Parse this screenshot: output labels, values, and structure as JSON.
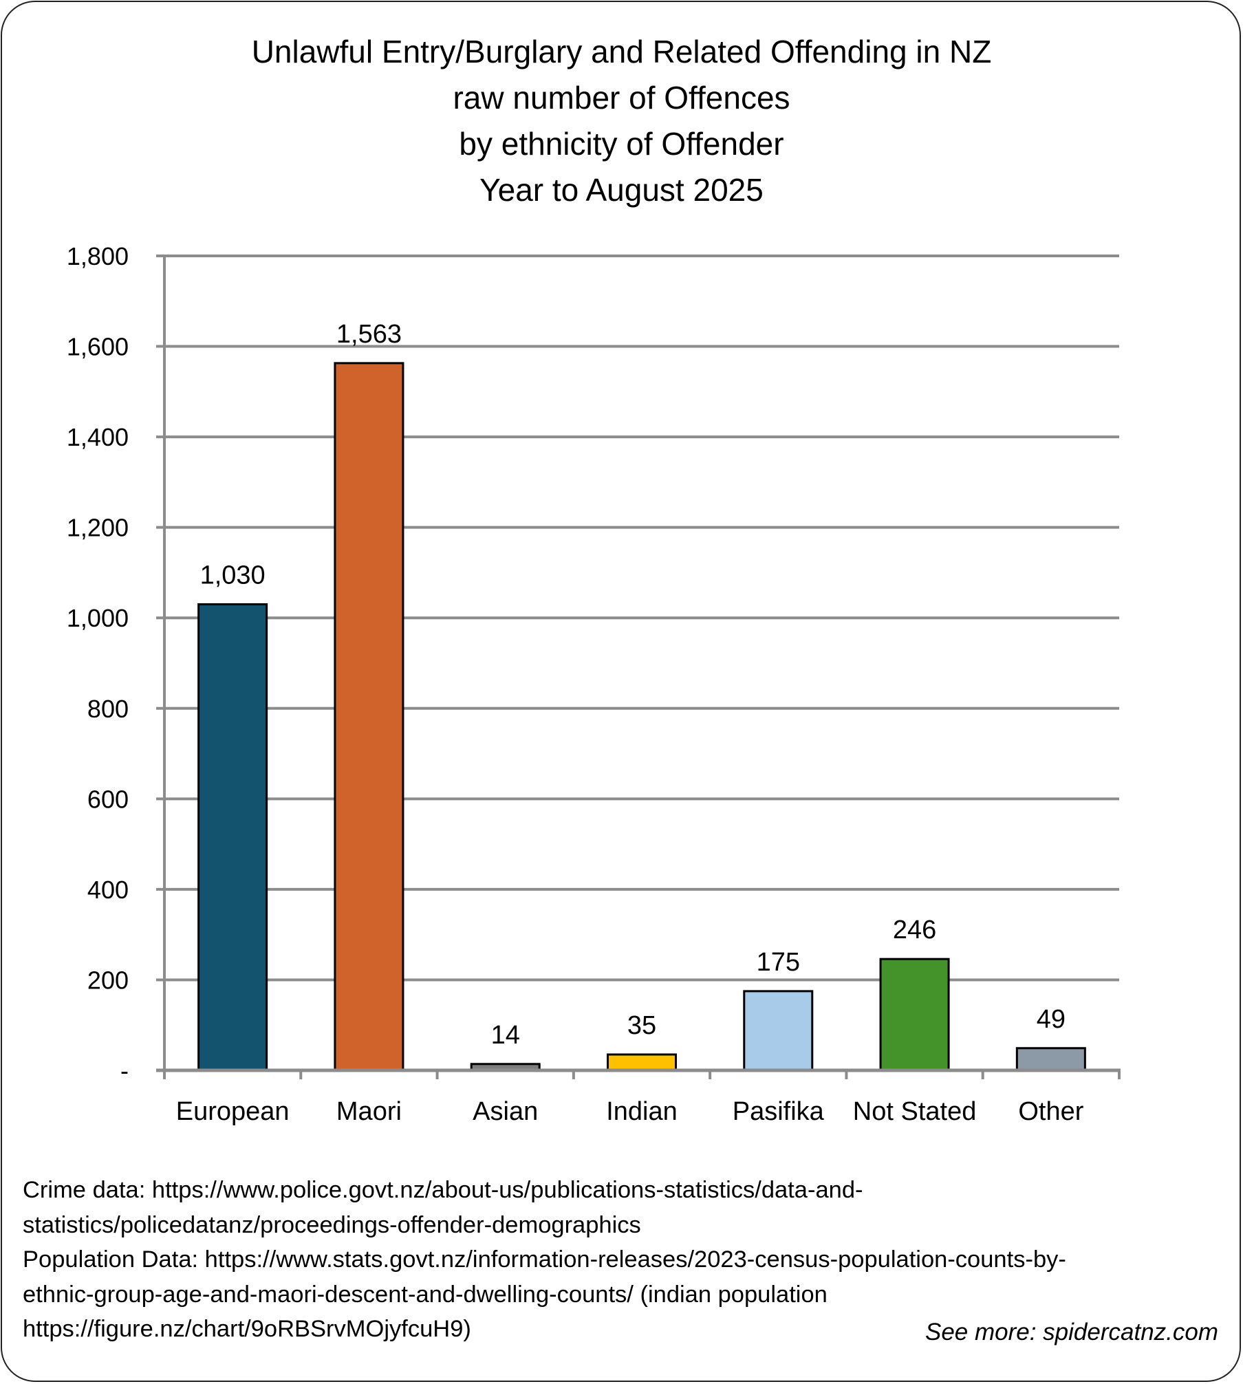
{
  "chart_data": {
    "type": "bar",
    "title": [
      "Unlawful Entry/Burglary and Related Offending in NZ",
      "raw number of Offences",
      "by ethnicity of Offender",
      "Year to August 2025"
    ],
    "xlabel": "",
    "ylabel": "",
    "ylim": [
      0,
      1800
    ],
    "yticks": [
      0,
      200,
      400,
      600,
      800,
      1000,
      1200,
      1400,
      1600,
      1800
    ],
    "ytick_labels": [
      "-",
      "200",
      "400",
      "600",
      "800",
      "1,000",
      "1,200",
      "1,400",
      "1,600",
      "1,800"
    ],
    "grid": true,
    "legend": "none",
    "categories": [
      "European",
      "Maori",
      "Asian",
      "Indian",
      "Pasifika",
      "Not Stated",
      "Other"
    ],
    "values": [
      1030,
      1563,
      14,
      35,
      175,
      246,
      49
    ],
    "data_labels": [
      "1,030",
      "1,563",
      "14",
      "35",
      "175",
      "246",
      "49"
    ],
    "colors": [
      "#14536e",
      "#d0632c",
      "#7f7f7f",
      "#ffc000",
      "#a9cbea",
      "#43922a",
      "#8c99a6"
    ]
  },
  "footer": {
    "lines": [
      "Crime data: https://www.police.govt.nz/about-us/publications-statistics/data-and-",
      "statistics/policedatanz/proceedings-offender-demographics",
      "Population Data: https://www.stats.govt.nz/information-releases/2023-census-population-counts-by-",
      "ethnic-group-age-and-maori-descent-and-dwelling-counts/  (indian population",
      "https://figure.nz/chart/9oRBSrvMOjyfcuH9)"
    ],
    "see_more": "See more: spidercatnz.com"
  }
}
